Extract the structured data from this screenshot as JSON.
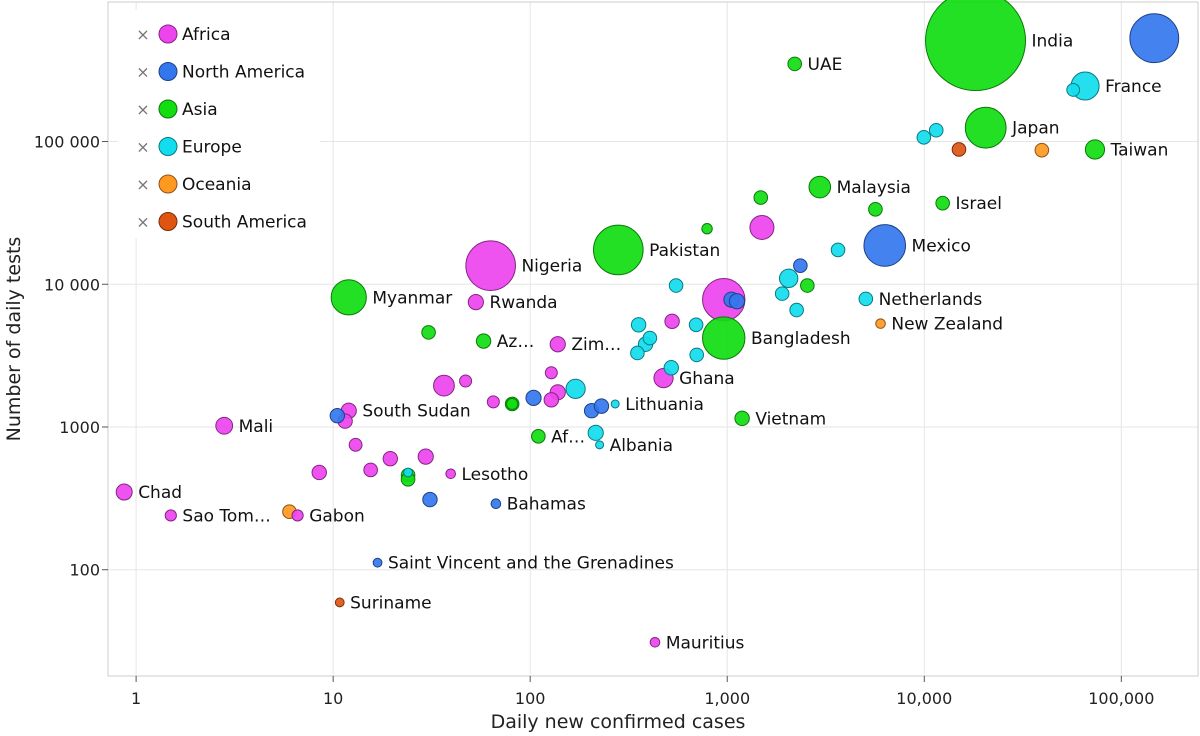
{
  "chart_data": {
    "type": "scatter",
    "xlabel": "Daily new confirmed cases",
    "ylabel": "Number of daily tests",
    "x_scale": "log",
    "y_scale": "log",
    "xlim": [
      0.72,
      245000
    ],
    "ylim": [
      18,
      950000
    ],
    "x_ticks": [
      1,
      10,
      100,
      1000,
      10000,
      100000
    ],
    "x_tick_labels": [
      "1",
      "10",
      "100",
      "1,000",
      "10,000",
      "100,000"
    ],
    "y_ticks": [
      100,
      1000,
      10000,
      100000
    ],
    "y_tick_labels": [
      "100",
      "1000",
      "10 000",
      "100 000"
    ],
    "grid": true,
    "legend_position": "top-left",
    "series": [
      {
        "name": "Africa",
        "color": "#ee44ee",
        "points": [
          {
            "x": 0.87,
            "y": 350,
            "size": 1,
            "label": "Chad"
          },
          {
            "x": 1.5,
            "y": 240,
            "size": 0.7,
            "label": "Sao Tom…"
          },
          {
            "x": 2.8,
            "y": 1020,
            "size": 1.05,
            "label": "Mali"
          },
          {
            "x": 6.6,
            "y": 240,
            "size": 0.7,
            "label": "Gabon"
          },
          {
            "x": 8.5,
            "y": 480,
            "size": 0.9
          },
          {
            "x": 11.5,
            "y": 1100,
            "size": 0.9
          },
          {
            "x": 12.0,
            "y": 1300,
            "size": 0.95,
            "label": "South Sudan"
          },
          {
            "x": 13.0,
            "y": 750,
            "size": 0.8
          },
          {
            "x": 15.5,
            "y": 500,
            "size": 0.85
          },
          {
            "x": 19.5,
            "y": 600,
            "size": 0.9
          },
          {
            "x": 29.5,
            "y": 620,
            "size": 0.95
          },
          {
            "x": 36.5,
            "y": 1950,
            "size": 1.3
          },
          {
            "x": 39.5,
            "y": 470,
            "size": 0.6,
            "label": "Lesotho"
          },
          {
            "x": 47.0,
            "y": 2100,
            "size": 0.75
          },
          {
            "x": 53.0,
            "y": 7500,
            "size": 0.95,
            "label": "Rwanda"
          },
          {
            "x": 63.0,
            "y": 13500,
            "size": 3.1,
            "label": "Nigeria"
          },
          {
            "x": 65.0,
            "y": 1500,
            "size": 0.75
          },
          {
            "x": 128.0,
            "y": 2400,
            "size": 0.75
          },
          {
            "x": 128.0,
            "y": 1550,
            "size": 0.9
          },
          {
            "x": 138.0,
            "y": 3800,
            "size": 0.95,
            "label": "Zim…"
          },
          {
            "x": 138.0,
            "y": 1750,
            "size": 0.95
          },
          {
            "x": 430.0,
            "y": 31,
            "size": 0.6,
            "label": "Mauritius"
          },
          {
            "x": 525.0,
            "y": 5500,
            "size": 0.9
          },
          {
            "x": 475.0,
            "y": 2200,
            "size": 1.2,
            "label": "Ghana"
          },
          {
            "x": 960.0,
            "y": 7800,
            "size": 2.65
          },
          {
            "x": 1500.0,
            "y": 25000,
            "size": 1.5
          }
        ]
      },
      {
        "name": "North America",
        "color": "#3377ee",
        "points": [
          {
            "x": 10.5,
            "y": 1200,
            "size": 0.9
          },
          {
            "x": 16.8,
            "y": 112,
            "size": 0.55,
            "label": "Saint Vincent and the Grenadines"
          },
          {
            "x": 31.0,
            "y": 310,
            "size": 0.9
          },
          {
            "x": 67.0,
            "y": 290,
            "size": 0.6,
            "label": "Bahamas"
          },
          {
            "x": 104.0,
            "y": 1600,
            "size": 0.95
          },
          {
            "x": 205.0,
            "y": 1300,
            "size": 0.9
          },
          {
            "x": 230.0,
            "y": 1400,
            "size": 0.9
          },
          {
            "x": 1050.0,
            "y": 7800,
            "size": 0.95
          },
          {
            "x": 1120.0,
            "y": 7600,
            "size": 0.95
          },
          {
            "x": 2350.0,
            "y": 13500,
            "size": 0.85
          },
          {
            "x": 6300.0,
            "y": 18700,
            "size": 2.6,
            "label": "Mexico"
          },
          {
            "x": 147000.0,
            "y": 530000,
            "size": 3.05
          }
        ]
      },
      {
        "name": "Asia",
        "color": "#11dd11",
        "points": [
          {
            "x": 12.0,
            "y": 8100,
            "size": 2.2,
            "label": "Myanmar"
          },
          {
            "x": 24.0,
            "y": 460,
            "size": 0.85
          },
          {
            "x": 24.0,
            "y": 430,
            "size": 0.85
          },
          {
            "x": 30.5,
            "y": 4600,
            "size": 0.85
          },
          {
            "x": 58.0,
            "y": 4000,
            "size": 0.9,
            "label": "Az…"
          },
          {
            "x": 81.0,
            "y": 1450,
            "size": 0.85
          },
          {
            "x": 81.0,
            "y": 1450,
            "size": 0.7
          },
          {
            "x": 110.0,
            "y": 860,
            "size": 0.85,
            "label": "Af…"
          },
          {
            "x": 280.0,
            "y": 17400,
            "size": 3.1,
            "label": "Pakistan"
          },
          {
            "x": 790.0,
            "y": 24500,
            "size": 0.65
          },
          {
            "x": 960.0,
            "y": 4200,
            "size": 2.65,
            "label": "Bangladesh"
          },
          {
            "x": 1190.0,
            "y": 1150,
            "size": 0.9,
            "label": "Vietnam"
          },
          {
            "x": 1480.0,
            "y": 40500,
            "size": 0.85
          },
          {
            "x": 2200.0,
            "y": 350000,
            "size": 0.85,
            "label": "UAE"
          },
          {
            "x": 2550.0,
            "y": 9800,
            "size": 0.85
          },
          {
            "x": 2950.0,
            "y": 48000,
            "size": 1.35,
            "label": "Malaysia"
          },
          {
            "x": 5650.0,
            "y": 33500,
            "size": 0.85
          },
          {
            "x": 12400.0,
            "y": 37000,
            "size": 0.85,
            "label": "Israel"
          },
          {
            "x": 18200.0,
            "y": 510000,
            "size": 6.25,
            "label": "India"
          },
          {
            "x": 20500.0,
            "y": 125000,
            "size": 2.55,
            "label": "Japan"
          },
          {
            "x": 73500.0,
            "y": 88000,
            "size": 1.2,
            "label": "Taiwan"
          }
        ]
      },
      {
        "name": "Europe",
        "color": "#11ddee",
        "points": [
          {
            "x": 24.0,
            "y": 480,
            "size": 0.55
          },
          {
            "x": 170.0,
            "y": 1850,
            "size": 1.2
          },
          {
            "x": 215.0,
            "y": 910,
            "size": 0.95
          },
          {
            "x": 225.0,
            "y": 750,
            "size": 0.5,
            "label": "Albania"
          },
          {
            "x": 270.0,
            "y": 1450,
            "size": 0.5,
            "label": "Lithuania"
          },
          {
            "x": 350.0,
            "y": 3300,
            "size": 0.85
          },
          {
            "x": 355.0,
            "y": 5200,
            "size": 0.9
          },
          {
            "x": 385.0,
            "y": 3800,
            "size": 0.9
          },
          {
            "x": 405.0,
            "y": 4200,
            "size": 0.85
          },
          {
            "x": 520.0,
            "y": 2600,
            "size": 0.9
          },
          {
            "x": 550.0,
            "y": 9800,
            "size": 0.85
          },
          {
            "x": 695.0,
            "y": 5200,
            "size": 0.85
          },
          {
            "x": 700.0,
            "y": 3200,
            "size": 0.85
          },
          {
            "x": 1900.0,
            "y": 8600,
            "size": 0.85
          },
          {
            "x": 2050.0,
            "y": 11000,
            "size": 1.15
          },
          {
            "x": 2250.0,
            "y": 6600,
            "size": 0.85
          },
          {
            "x": 3650.0,
            "y": 17400,
            "size": 0.85
          },
          {
            "x": 5050.0,
            "y": 7900,
            "size": 0.85,
            "label": "Netherlands"
          },
          {
            "x": 9950.0,
            "y": 107000,
            "size": 0.85
          },
          {
            "x": 11500.0,
            "y": 120000,
            "size": 0.85
          },
          {
            "x": 57000.0,
            "y": 230000,
            "size": 0.8
          },
          {
            "x": 65500.0,
            "y": 245000,
            "size": 1.75,
            "label": "France"
          }
        ]
      },
      {
        "name": "Oceania",
        "color": "#ff9922",
        "points": [
          {
            "x": 6.0,
            "y": 255,
            "size": 0.85
          },
          {
            "x": 6000.0,
            "y": 5300,
            "size": 0.6,
            "label": "New Zealand"
          },
          {
            "x": 39500.0,
            "y": 87000,
            "size": 0.85
          }
        ]
      },
      {
        "name": "South America",
        "color": "#dd5511",
        "points": [
          {
            "x": 10.8,
            "y": 59,
            "size": 0.55,
            "label": "Suriname"
          },
          {
            "x": 15000.0,
            "y": 88000,
            "size": 0.85
          }
        ]
      }
    ]
  },
  "legend": {
    "marker": "×",
    "items": [
      "Africa",
      "North America",
      "Asia",
      "Europe",
      "Oceania",
      "South America"
    ]
  }
}
